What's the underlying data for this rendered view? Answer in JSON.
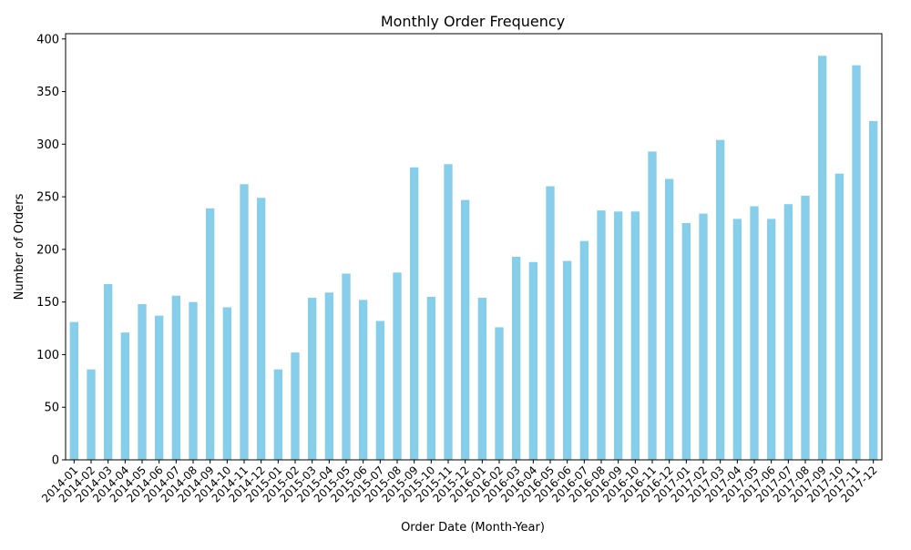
{
  "chart_data": {
    "type": "bar",
    "title": "Monthly Order Frequency",
    "xlabel": "Order Date (Month-Year)",
    "ylabel": "Number of Orders",
    "ylim": [
      0,
      405
    ],
    "yticks": [
      0,
      50,
      100,
      150,
      200,
      250,
      300,
      350,
      400
    ],
    "grid": false,
    "legend": "none",
    "bar_color": "#87ceeb",
    "categories": [
      "2014-01",
      "2014-02",
      "2014-03",
      "2014-04",
      "2014-05",
      "2014-06",
      "2014-07",
      "2014-08",
      "2014-09",
      "2014-10",
      "2014-11",
      "2014-12",
      "2015-01",
      "2015-02",
      "2015-03",
      "2015-04",
      "2015-05",
      "2015-06",
      "2015-07",
      "2015-08",
      "2015-09",
      "2015-10",
      "2015-11",
      "2015-12",
      "2016-01",
      "2016-02",
      "2016-03",
      "2016-04",
      "2016-05",
      "2016-06",
      "2016-07",
      "2016-08",
      "2016-09",
      "2016-10",
      "2016-11",
      "2016-12",
      "2017-01",
      "2017-02",
      "2017-03",
      "2017-04",
      "2017-05",
      "2017-06",
      "2017-07",
      "2017-08",
      "2017-09",
      "2017-10",
      "2017-11",
      "2017-12"
    ],
    "values": [
      131,
      86,
      167,
      121,
      148,
      137,
      156,
      150,
      239,
      145,
      262,
      249,
      86,
      102,
      154,
      159,
      177,
      152,
      132,
      178,
      278,
      155,
      281,
      247,
      154,
      126,
      193,
      188,
      260,
      189,
      208,
      237,
      236,
      236,
      293,
      267,
      225,
      234,
      304,
      229,
      241,
      229,
      243,
      251,
      384,
      272,
      375,
      322
    ]
  }
}
